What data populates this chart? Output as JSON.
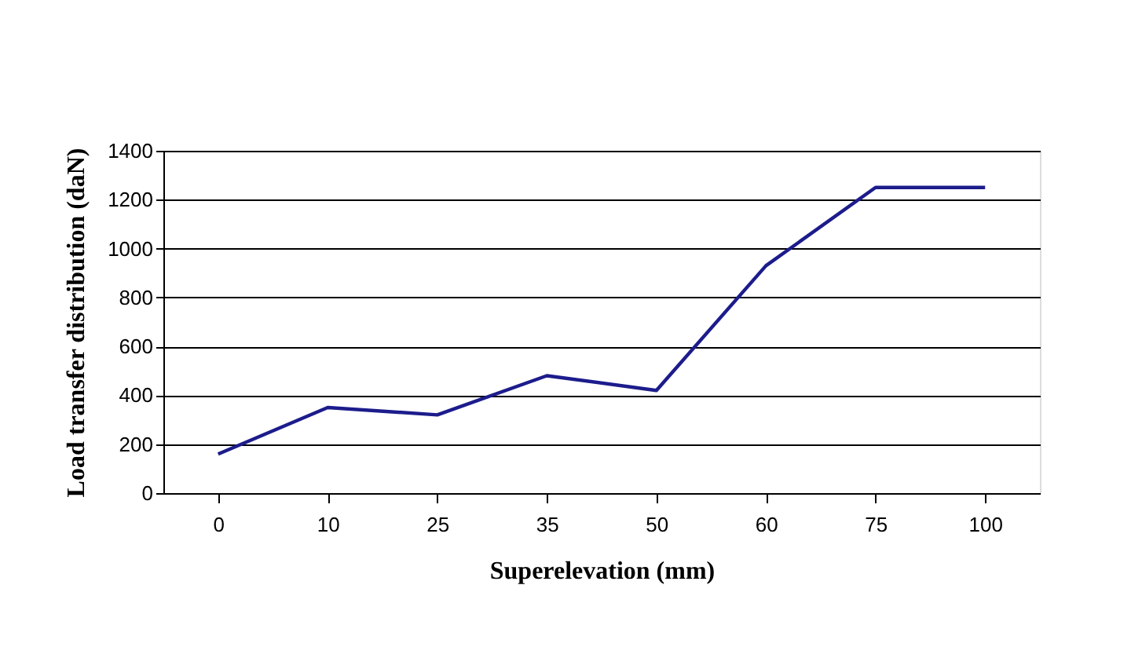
{
  "chart_data": {
    "type": "line",
    "xlabel": "Superelevation (mm)",
    "ylabel": "Load transfer distribution  (daN)",
    "categories": [
      "0",
      "10",
      "25",
      "35",
      "50",
      "60",
      "75",
      "100"
    ],
    "series": [
      {
        "color": "#1c1c8c",
        "values": [
          160,
          350,
          320,
          480,
          420,
          930,
          1250,
          1250
        ]
      }
    ],
    "ylim": [
      0,
      1400
    ],
    "yticks": [
      0,
      200,
      400,
      600,
      800,
      1000,
      1200,
      1400
    ],
    "grid": "y",
    "marker": "none",
    "line_style": "solid"
  }
}
